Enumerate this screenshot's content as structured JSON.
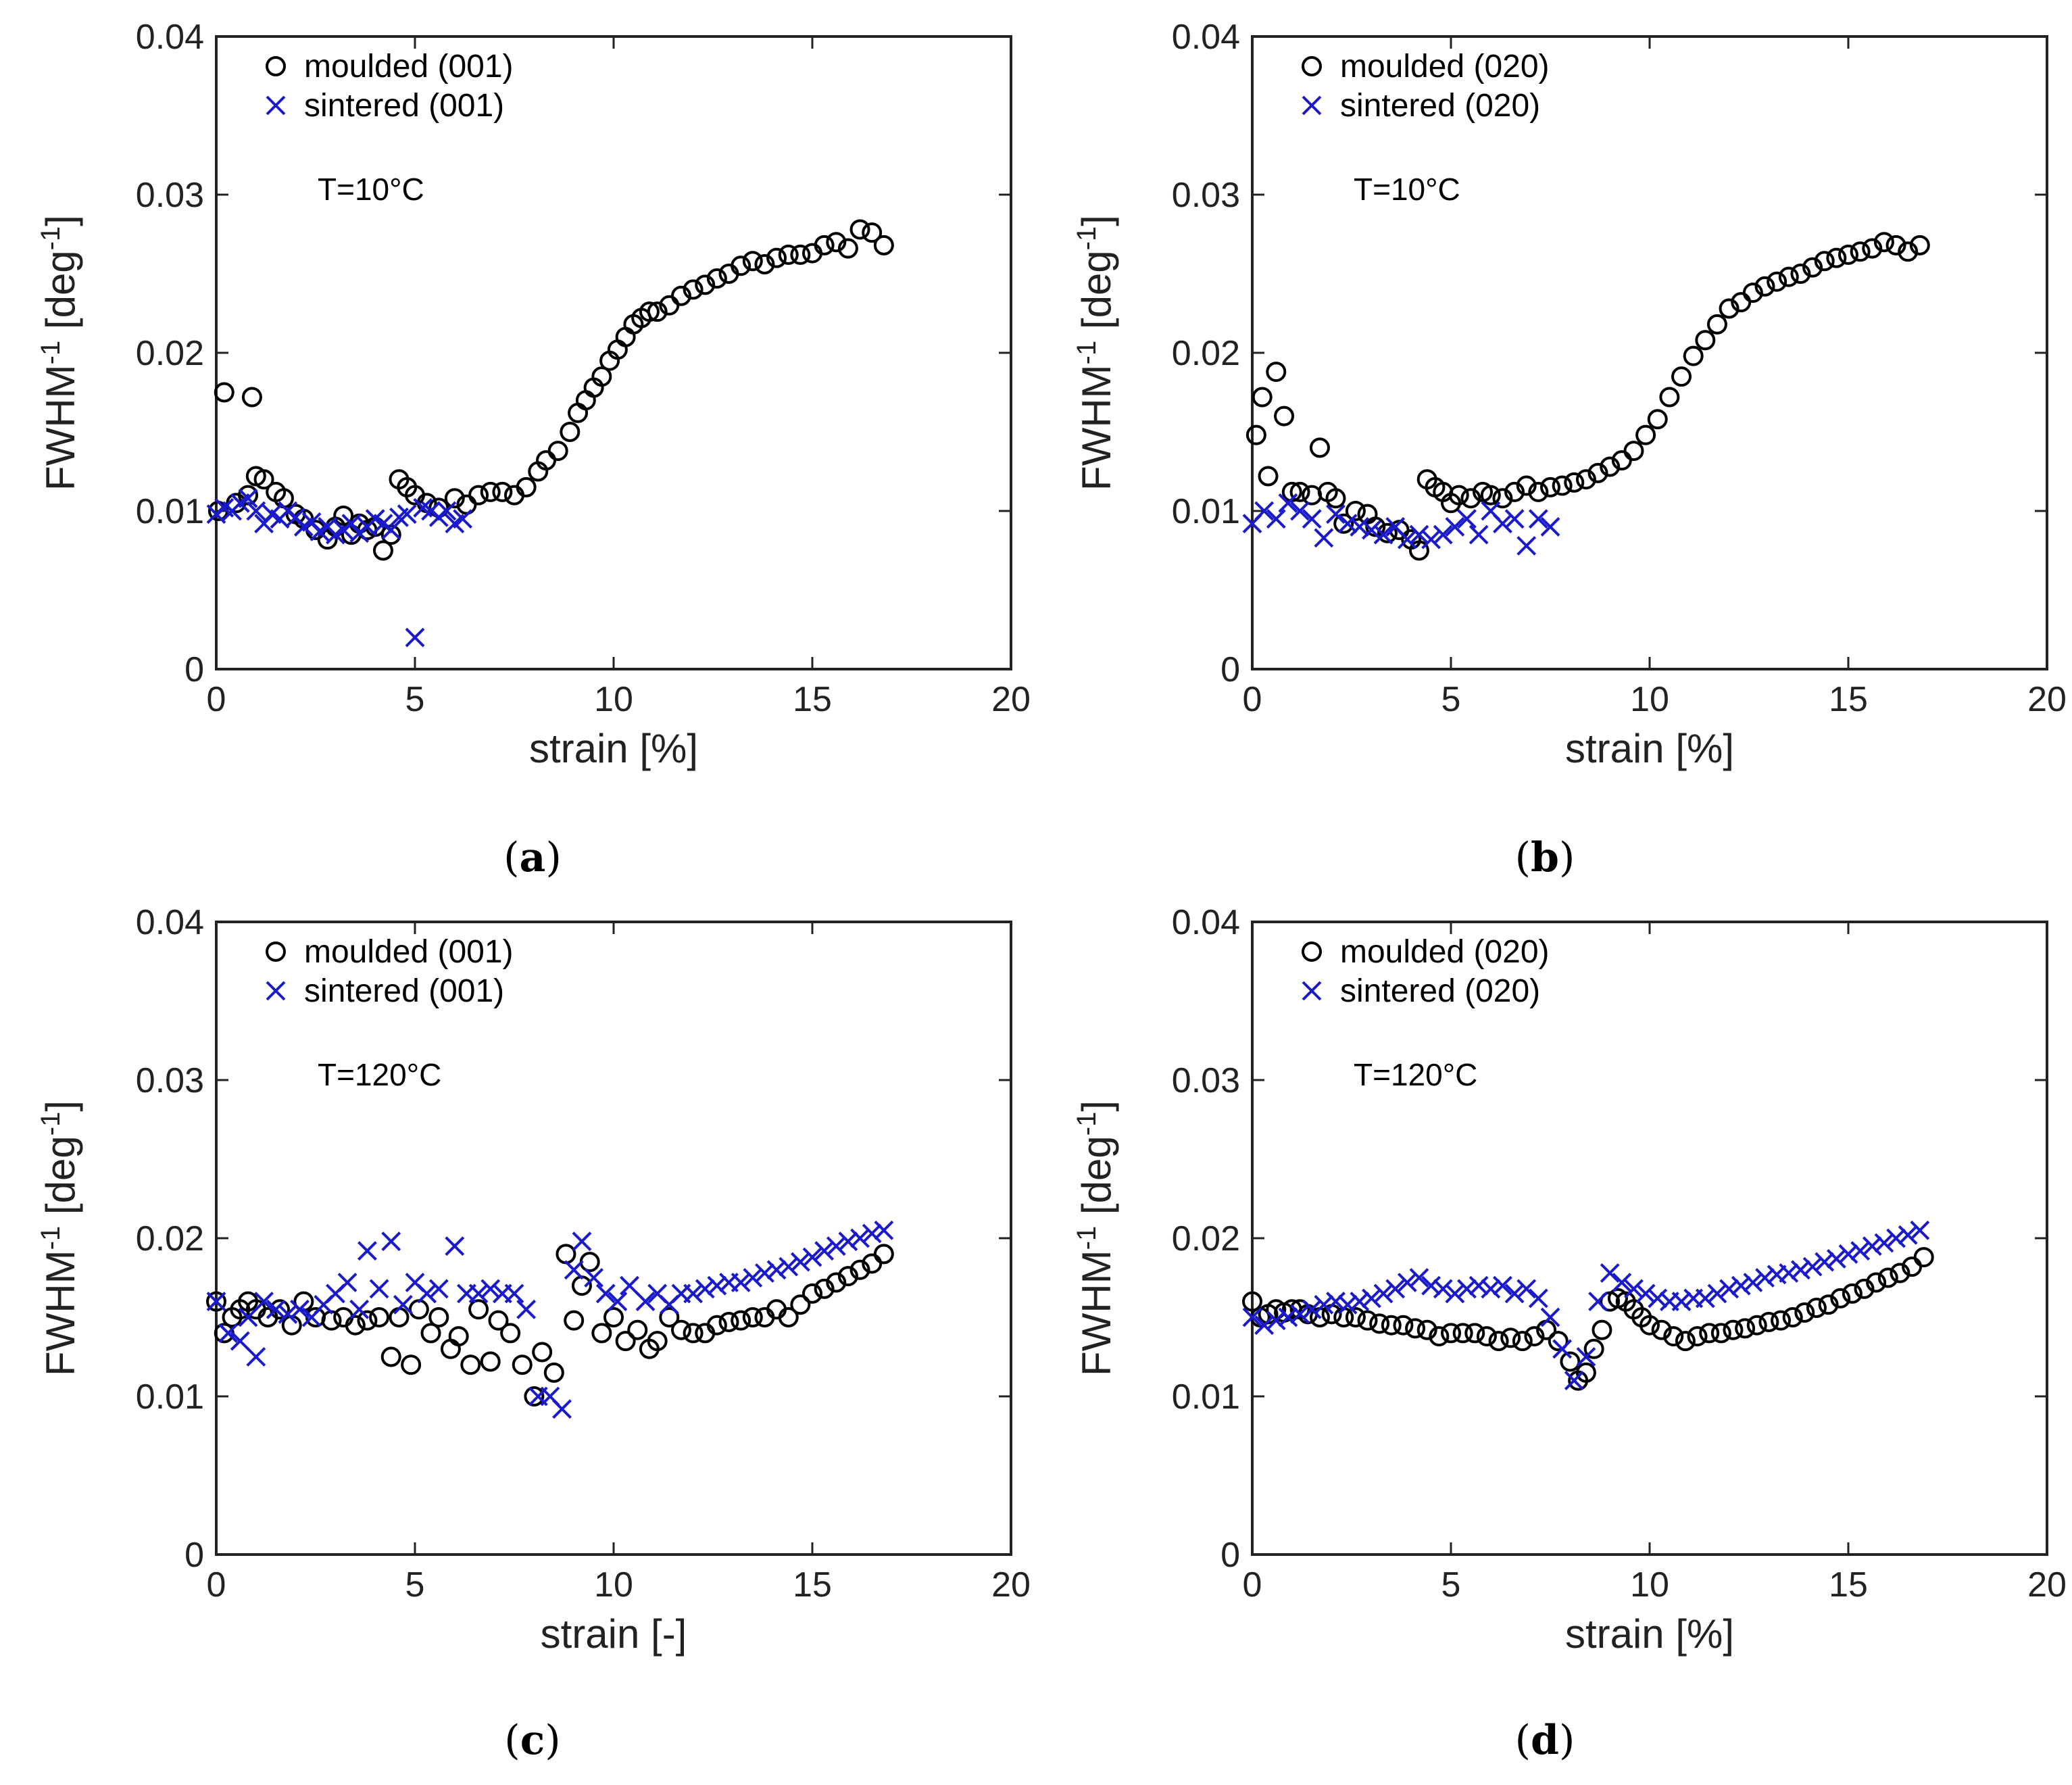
{
  "colors": {
    "moulded": "#000000",
    "sintered": "#1a1acc",
    "axis": "#222222"
  },
  "chart_data": [
    {
      "id": "a",
      "type": "scatter",
      "caption": "a",
      "xlabel": "strain [%]",
      "ylabel": "FWHM-1 [deg-1]",
      "ylabel_main": "FWHM",
      "ylabel_sup1": "-1",
      "ylabel_mid": " [deg",
      "ylabel_sup2": "-1",
      "ylabel_end": "]",
      "xlim": [
        0,
        20
      ],
      "ylim": [
        0,
        0.04
      ],
      "xticks": [
        "0",
        "5",
        "10",
        "15",
        "20"
      ],
      "yticks": [
        "0",
        "0.01",
        "0.02",
        "0.03",
        "0.04"
      ],
      "annotation": "T=10°C",
      "legend": [
        "moulded (001)",
        "sintered (001)"
      ],
      "series": [
        {
          "name": "moulded (001)",
          "marker": "circle",
          "x": [
            0.05,
            0.2,
            0.5,
            0.8,
            0.9,
            1.0,
            1.2,
            1.5,
            1.7,
            2.0,
            2.2,
            2.5,
            2.8,
            3.0,
            3.2,
            3.4,
            3.6,
            3.8,
            4.0,
            4.2,
            4.4,
            4.6,
            4.8,
            5.0,
            5.3,
            5.6,
            6.0,
            6.3,
            6.6,
            6.9,
            7.2,
            7.5,
            7.8,
            8.1,
            8.3,
            8.6,
            8.9,
            9.1,
            9.3,
            9.5,
            9.7,
            9.9,
            10.1,
            10.3,
            10.5,
            10.7,
            10.9,
            11.1,
            11.4,
            11.7,
            12.0,
            12.3,
            12.6,
            12.9,
            13.2,
            13.5,
            13.8,
            14.1,
            14.4,
            14.7,
            15.0,
            15.3,
            15.6,
            15.9,
            16.2,
            16.5,
            16.8
          ],
          "y": [
            0.01,
            0.0175,
            0.0105,
            0.011,
            0.0172,
            0.0122,
            0.012,
            0.0112,
            0.0108,
            0.0098,
            0.0095,
            0.0088,
            0.0082,
            0.009,
            0.0097,
            0.0085,
            0.0092,
            0.0088,
            0.009,
            0.0075,
            0.0085,
            0.012,
            0.0115,
            0.011,
            0.0105,
            0.0102,
            0.0108,
            0.0104,
            0.011,
            0.0112,
            0.0112,
            0.011,
            0.0115,
            0.0125,
            0.0132,
            0.0138,
            0.015,
            0.0162,
            0.017,
            0.0178,
            0.0185,
            0.0195,
            0.0202,
            0.021,
            0.0218,
            0.0222,
            0.0226,
            0.0226,
            0.023,
            0.0236,
            0.024,
            0.0243,
            0.0247,
            0.025,
            0.0255,
            0.0258,
            0.0256,
            0.026,
            0.0262,
            0.0262,
            0.0263,
            0.0268,
            0.027,
            0.0266,
            0.0278,
            0.0276,
            0.0268
          ]
        },
        {
          "name": "sintered (001)",
          "marker": "x",
          "x": [
            0.0,
            0.2,
            0.4,
            0.6,
            0.8,
            1.0,
            1.2,
            1.4,
            1.6,
            1.8,
            2.0,
            2.2,
            2.4,
            2.6,
            2.8,
            3.0,
            3.2,
            3.4,
            3.6,
            3.8,
            4.0,
            4.2,
            4.4,
            4.6,
            4.8,
            5.0,
            5.2,
            5.4,
            5.6,
            5.8,
            6.0,
            6.2
          ],
          "y": [
            0.0098,
            0.0102,
            0.01,
            0.0105,
            0.0108,
            0.01,
            0.0092,
            0.0098,
            0.0095,
            0.01,
            0.0096,
            0.009,
            0.0093,
            0.0087,
            0.009,
            0.0085,
            0.0088,
            0.0092,
            0.0086,
            0.009,
            0.0095,
            0.0092,
            0.0088,
            0.0096,
            0.0098,
            0.002,
            0.0102,
            0.01,
            0.0096,
            0.01,
            0.0092,
            0.0095
          ]
        }
      ]
    },
    {
      "id": "b",
      "type": "scatter",
      "caption": "b",
      "xlabel": "strain [%]",
      "ylabel": "FWHM-1 [deg-1]",
      "ylabel_main": "FWHM",
      "ylabel_sup1": "-1",
      "ylabel_mid": " [deg",
      "ylabel_sup2": "-1",
      "ylabel_end": "]",
      "xlim": [
        0,
        20
      ],
      "ylim": [
        0,
        0.04
      ],
      "xticks": [
        "0",
        "5",
        "10",
        "15",
        "20"
      ],
      "yticks": [
        "0",
        "0.01",
        "0.02",
        "0.03",
        "0.04"
      ],
      "annotation": "T=10°C",
      "legend": [
        "moulded (020)",
        "sintered (020)"
      ],
      "series": [
        {
          "name": "moulded (020)",
          "marker": "circle",
          "x": [
            0.1,
            0.25,
            0.4,
            0.6,
            0.8,
            1.0,
            1.2,
            1.5,
            1.7,
            1.9,
            2.1,
            2.3,
            2.6,
            2.9,
            3.1,
            3.4,
            3.7,
            4.0,
            4.2,
            4.4,
            4.6,
            4.8,
            5.0,
            5.2,
            5.5,
            5.8,
            6.0,
            6.3,
            6.6,
            6.9,
            7.2,
            7.5,
            7.8,
            8.1,
            8.4,
            8.7,
            9.0,
            9.3,
            9.6,
            9.9,
            10.2,
            10.5,
            10.8,
            11.1,
            11.4,
            11.7,
            12.0,
            12.3,
            12.6,
            12.9,
            13.2,
            13.5,
            13.8,
            14.1,
            14.4,
            14.7,
            15.0,
            15.3,
            15.6,
            15.9,
            16.2,
            16.5,
            16.8
          ],
          "y": [
            0.0148,
            0.0172,
            0.0122,
            0.0188,
            0.016,
            0.0112,
            0.0112,
            0.011,
            0.014,
            0.0112,
            0.0108,
            0.0092,
            0.01,
            0.0098,
            0.009,
            0.0086,
            0.0088,
            0.0082,
            0.0075,
            0.012,
            0.0115,
            0.0112,
            0.0105,
            0.011,
            0.0108,
            0.0112,
            0.011,
            0.0108,
            0.0112,
            0.0116,
            0.0112,
            0.0115,
            0.0116,
            0.0118,
            0.012,
            0.0124,
            0.0128,
            0.0132,
            0.0138,
            0.0148,
            0.0158,
            0.0172,
            0.0185,
            0.0198,
            0.0208,
            0.0218,
            0.0228,
            0.0232,
            0.0238,
            0.0242,
            0.0245,
            0.0248,
            0.025,
            0.0254,
            0.0258,
            0.026,
            0.0262,
            0.0264,
            0.0266,
            0.027,
            0.0268,
            0.0264,
            0.0268
          ]
        },
        {
          "name": "sintered (020)",
          "marker": "x",
          "x": [
            0.0,
            0.3,
            0.6,
            0.9,
            1.2,
            1.5,
            1.8,
            2.1,
            2.4,
            2.7,
            3.0,
            3.3,
            3.6,
            3.9,
            4.2,
            4.5,
            4.8,
            5.1,
            5.4,
            5.7,
            6.0,
            6.3,
            6.6,
            6.9,
            7.2,
            7.5
          ],
          "y": [
            0.0092,
            0.01,
            0.0095,
            0.0105,
            0.01,
            0.0095,
            0.0083,
            0.0098,
            0.0092,
            0.009,
            0.0088,
            0.0085,
            0.009,
            0.0082,
            0.0085,
            0.0082,
            0.0085,
            0.009,
            0.0095,
            0.0085,
            0.01,
            0.0092,
            0.0095,
            0.0078,
            0.0095,
            0.009
          ]
        }
      ]
    },
    {
      "id": "c",
      "type": "scatter",
      "caption": "c",
      "xlabel": "strain [-]",
      "ylabel": "FWHM-1 [deg-1]",
      "ylabel_main": "FWHM",
      "ylabel_sup1": "-1",
      "ylabel_mid": " [deg",
      "ylabel_sup2": "-1",
      "ylabel_end": "]",
      "xlim": [
        0,
        20
      ],
      "ylim": [
        0,
        0.04
      ],
      "xticks": [
        "0",
        "5",
        "10",
        "15",
        "20"
      ],
      "yticks": [
        "0",
        "0.01",
        "0.02",
        "0.03",
        "0.04"
      ],
      "annotation": "T=120°C",
      "legend": [
        "moulded (001)",
        "sintered (001)"
      ],
      "series": [
        {
          "name": "moulded (001)",
          "marker": "circle",
          "x": [
            0.0,
            0.2,
            0.4,
            0.6,
            0.8,
            1.0,
            1.3,
            1.6,
            1.9,
            2.2,
            2.5,
            2.9,
            3.2,
            3.5,
            3.8,
            4.1,
            4.4,
            4.6,
            4.9,
            5.1,
            5.4,
            5.6,
            5.9,
            6.1,
            6.4,
            6.6,
            6.9,
            7.1,
            7.4,
            7.7,
            8.0,
            8.2,
            8.5,
            8.8,
            9.0,
            9.2,
            9.4,
            9.7,
            10.0,
            10.3,
            10.6,
            10.9,
            11.1,
            11.4,
            11.7,
            12.0,
            12.3,
            12.6,
            12.9,
            13.2,
            13.5,
            13.8,
            14.1,
            14.4,
            14.7,
            15.0,
            15.3,
            15.6,
            15.9,
            16.2,
            16.5,
            16.8
          ],
          "y": [
            0.016,
            0.014,
            0.015,
            0.0155,
            0.016,
            0.0155,
            0.015,
            0.0155,
            0.0145,
            0.016,
            0.015,
            0.0148,
            0.015,
            0.0145,
            0.0148,
            0.015,
            0.0125,
            0.015,
            0.012,
            0.0155,
            0.014,
            0.015,
            0.013,
            0.0138,
            0.012,
            0.0155,
            0.0122,
            0.0148,
            0.014,
            0.012,
            0.01,
            0.0128,
            0.0115,
            0.019,
            0.0148,
            0.017,
            0.0185,
            0.014,
            0.015,
            0.0135,
            0.0142,
            0.013,
            0.0135,
            0.015,
            0.0142,
            0.014,
            0.014,
            0.0145,
            0.0147,
            0.0148,
            0.015,
            0.015,
            0.0155,
            0.015,
            0.0158,
            0.0165,
            0.0168,
            0.0172,
            0.0176,
            0.018,
            0.0184,
            0.019
          ]
        },
        {
          "name": "sintered (001)",
          "marker": "x",
          "x": [
            0.0,
            0.3,
            0.6,
            0.8,
            1.0,
            1.2,
            1.5,
            1.8,
            2.1,
            2.4,
            2.7,
            3.0,
            3.3,
            3.6,
            3.8,
            4.1,
            4.4,
            4.7,
            5.0,
            5.3,
            5.6,
            6.0,
            6.3,
            6.6,
            6.9,
            7.2,
            7.5,
            7.8,
            8.1,
            8.4,
            8.7,
            9.0,
            9.2,
            9.5,
            9.8,
            10.1,
            10.4,
            10.8,
            11.1,
            11.4,
            11.7,
            12.0,
            12.3,
            12.6,
            12.9,
            13.2,
            13.5,
            13.8,
            14.1,
            14.4,
            14.7,
            15.0,
            15.3,
            15.6,
            15.9,
            16.2,
            16.5,
            16.8
          ],
          "y": [
            0.016,
            0.014,
            0.0135,
            0.015,
            0.0125,
            0.016,
            0.0155,
            0.0152,
            0.0155,
            0.015,
            0.0158,
            0.0165,
            0.0172,
            0.0155,
            0.0192,
            0.0168,
            0.0198,
            0.0158,
            0.0172,
            0.0165,
            0.0168,
            0.0195,
            0.0165,
            0.0165,
            0.0168,
            0.0165,
            0.0165,
            0.0155,
            0.01,
            0.01,
            0.0092,
            0.018,
            0.0198,
            0.0175,
            0.0165,
            0.016,
            0.017,
            0.016,
            0.0165,
            0.0158,
            0.0165,
            0.0165,
            0.0168,
            0.017,
            0.0172,
            0.0172,
            0.0175,
            0.0178,
            0.018,
            0.0182,
            0.0185,
            0.0188,
            0.0192,
            0.0195,
            0.0198,
            0.02,
            0.0203,
            0.0205
          ]
        }
      ]
    },
    {
      "id": "d",
      "type": "scatter",
      "caption": "d",
      "xlabel": "strain [%]",
      "ylabel": "FWHM-1 [deg-1]",
      "ylabel_main": "FWHM",
      "ylabel_sup1": "-1",
      "ylabel_mid": " [deg",
      "ylabel_sup2": "-1",
      "ylabel_end": "]",
      "xlim": [
        0,
        20
      ],
      "ylim": [
        0,
        0.04
      ],
      "xticks": [
        "0",
        "5",
        "10",
        "15",
        "20"
      ],
      "yticks": [
        "0",
        "0.01",
        "0.02",
        "0.03",
        "0.04"
      ],
      "annotation": "T=120°C",
      "legend": [
        "moulded (020)",
        "sintered (020)"
      ],
      "series": [
        {
          "name": "moulded (020)",
          "marker": "circle",
          "x": [
            0.0,
            0.2,
            0.4,
            0.6,
            0.8,
            1.0,
            1.2,
            1.4,
            1.7,
            2.0,
            2.3,
            2.6,
            2.9,
            3.2,
            3.5,
            3.8,
            4.1,
            4.4,
            4.7,
            5.0,
            5.3,
            5.6,
            5.9,
            6.2,
            6.5,
            6.8,
            7.1,
            7.4,
            7.7,
            8.0,
            8.2,
            8.4,
            8.6,
            8.8,
            9.0,
            9.2,
            9.4,
            9.6,
            9.8,
            10.0,
            10.3,
            10.6,
            10.9,
            11.2,
            11.5,
            11.8,
            12.1,
            12.4,
            12.7,
            13.0,
            13.3,
            13.6,
            13.9,
            14.2,
            14.5,
            14.8,
            15.1,
            15.4,
            15.7,
            16.0,
            16.3,
            16.6,
            16.9
          ],
          "y": [
            0.016,
            0.015,
            0.0152,
            0.0155,
            0.0153,
            0.0155,
            0.0155,
            0.0152,
            0.015,
            0.0152,
            0.015,
            0.015,
            0.0148,
            0.0146,
            0.0145,
            0.0145,
            0.0143,
            0.0142,
            0.0138,
            0.014,
            0.014,
            0.014,
            0.0138,
            0.0135,
            0.0137,
            0.0135,
            0.0138,
            0.0142,
            0.0135,
            0.0122,
            0.011,
            0.0115,
            0.013,
            0.0142,
            0.016,
            0.0162,
            0.016,
            0.0155,
            0.015,
            0.0145,
            0.0142,
            0.0138,
            0.0135,
            0.0138,
            0.014,
            0.014,
            0.0142,
            0.0143,
            0.0145,
            0.0147,
            0.0148,
            0.015,
            0.0153,
            0.0156,
            0.0158,
            0.0162,
            0.0165,
            0.0168,
            0.0172,
            0.0175,
            0.0178,
            0.0182,
            0.0188
          ]
        },
        {
          "name": "sintered (020)",
          "marker": "x",
          "x": [
            0.0,
            0.3,
            0.6,
            0.9,
            1.2,
            1.5,
            1.8,
            2.1,
            2.4,
            2.7,
            3.0,
            3.3,
            3.6,
            3.9,
            4.2,
            4.5,
            4.8,
            5.1,
            5.4,
            5.7,
            6.0,
            6.3,
            6.6,
            6.9,
            7.2,
            7.5,
            7.8,
            8.1,
            8.4,
            8.7,
            9.0,
            9.3,
            9.6,
            9.9,
            10.2,
            10.5,
            10.8,
            11.1,
            11.4,
            11.7,
            12.0,
            12.3,
            12.6,
            12.9,
            13.2,
            13.5,
            13.8,
            14.1,
            14.4,
            14.7,
            15.0,
            15.3,
            15.6,
            15.9,
            16.2,
            16.5,
            16.8
          ],
          "y": [
            0.015,
            0.0145,
            0.0148,
            0.015,
            0.0152,
            0.0155,
            0.0158,
            0.016,
            0.0158,
            0.016,
            0.0162,
            0.0165,
            0.0168,
            0.0172,
            0.0175,
            0.017,
            0.0168,
            0.0165,
            0.0168,
            0.017,
            0.0168,
            0.017,
            0.0165,
            0.0168,
            0.0162,
            0.015,
            0.013,
            0.011,
            0.0125,
            0.016,
            0.0178,
            0.0172,
            0.0168,
            0.0165,
            0.0162,
            0.016,
            0.016,
            0.0162,
            0.0162,
            0.0165,
            0.0168,
            0.017,
            0.0172,
            0.0175,
            0.0177,
            0.0178,
            0.018,
            0.0182,
            0.0185,
            0.0187,
            0.019,
            0.0192,
            0.0195,
            0.0197,
            0.02,
            0.0202,
            0.0205
          ]
        }
      ]
    }
  ]
}
